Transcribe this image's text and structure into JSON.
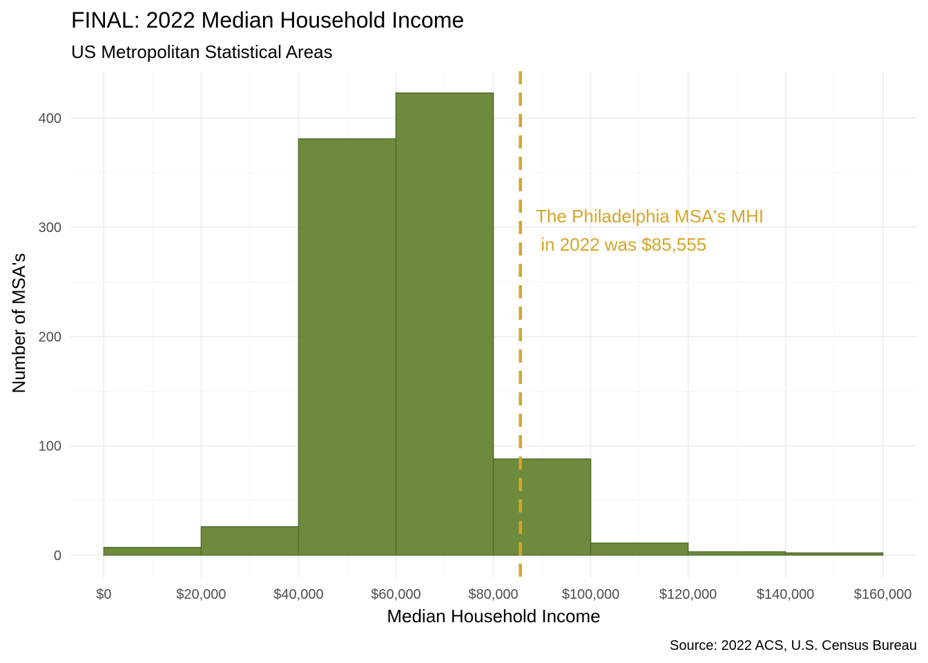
{
  "chart_data": {
    "type": "bar",
    "title": "FINAL: 2022 Median Household Income",
    "subtitle": "US Metropolitan Statistical Areas",
    "xlabel": "Median Household Income",
    "ylabel": "Number of MSA's",
    "caption": "Source: 2022 ACS, U.S. Census Bureau",
    "bins": [
      {
        "x0": 0,
        "x1": 20000,
        "count": 7
      },
      {
        "x0": 20000,
        "x1": 40000,
        "count": 26
      },
      {
        "x0": 40000,
        "x1": 60000,
        "count": 381
      },
      {
        "x0": 60000,
        "x1": 80000,
        "count": 423
      },
      {
        "x0": 80000,
        "x1": 100000,
        "count": 88
      },
      {
        "x0": 100000,
        "x1": 120000,
        "count": 11
      },
      {
        "x0": 120000,
        "x1": 140000,
        "count": 3
      },
      {
        "x0": 140000,
        "x1": 160000,
        "count": 2
      }
    ],
    "xlim": [
      -7000,
      167000
    ],
    "ylim": [
      -21,
      443
    ],
    "x_ticks": [
      0,
      20000,
      40000,
      60000,
      80000,
      100000,
      120000,
      140000,
      160000
    ],
    "x_tick_labels": [
      "$0",
      "$20,000",
      "$40,000",
      "$60,000",
      "$80,000",
      "$100,000",
      "$120,000",
      "$140,000",
      "$160,000"
    ],
    "y_ticks": [
      0,
      100,
      200,
      300,
      400
    ],
    "y_tick_labels": [
      "0",
      "100",
      "200",
      "300",
      "400"
    ],
    "grid": true,
    "reference_line": {
      "x": 85555,
      "style": "dashed",
      "color": "#D4A52A"
    },
    "annotation": {
      "lines": [
        "The Philadelphia MSA's MHI",
        " in 2022 was $85,555"
      ],
      "color": "#D4A52A"
    },
    "colors": {
      "bar_fill": "#6E8B3D",
      "bar_stroke": "#4F6B2C",
      "grid_major": "#EBEBEB",
      "grid_minor": "#F5F5F5"
    }
  }
}
